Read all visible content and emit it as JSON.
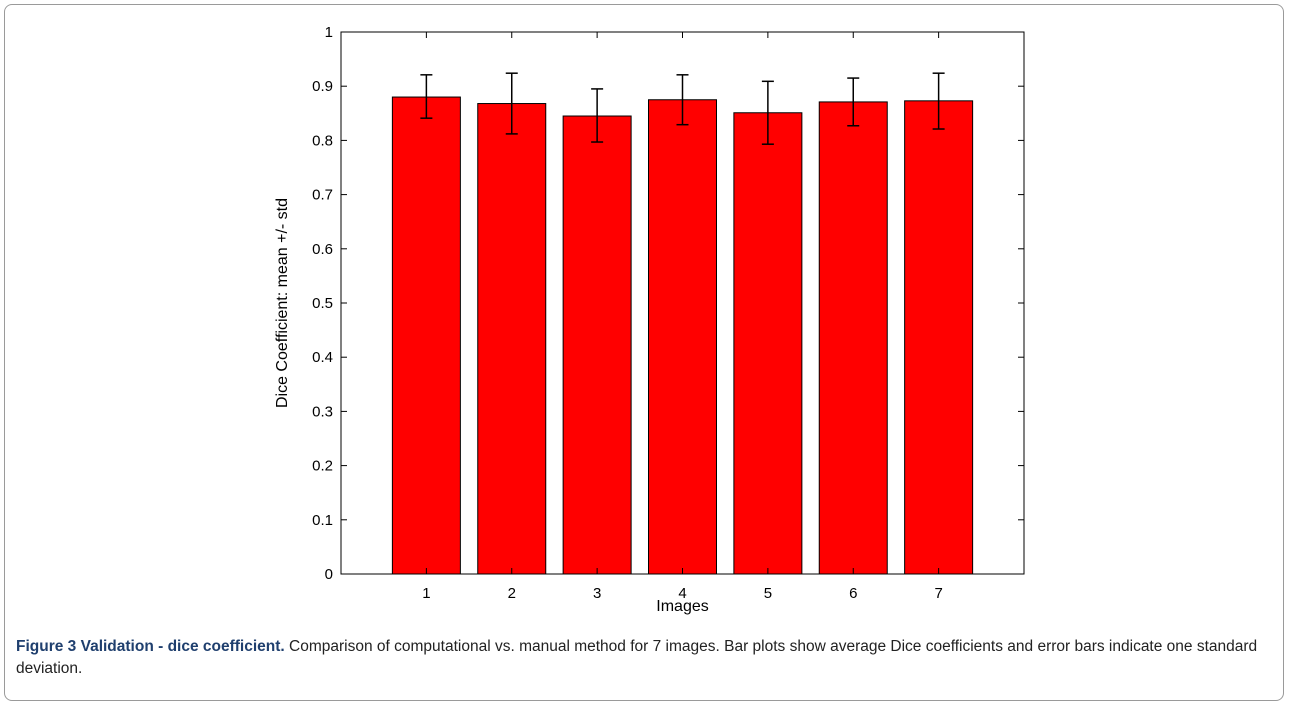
{
  "chart_data": {
    "type": "bar",
    "categories": [
      "1",
      "2",
      "3",
      "4",
      "5",
      "6",
      "7"
    ],
    "values": [
      0.88,
      0.868,
      0.845,
      0.875,
      0.851,
      0.871,
      0.873
    ],
    "error_upper": [
      0.921,
      0.924,
      0.895,
      0.921,
      0.909,
      0.915,
      0.924
    ],
    "error_lower": [
      0.841,
      0.812,
      0.797,
      0.829,
      0.793,
      0.827,
      0.821
    ],
    "xlabel": "Images",
    "ylabel": "Dice Coefficient: mean +/- std",
    "ylim": [
      0,
      1
    ],
    "yticks": [
      "0",
      "0.1",
      "0.2",
      "0.3",
      "0.4",
      "0.5",
      "0.6",
      "0.7",
      "0.8",
      "0.9",
      "1"
    ],
    "bar_color": "#ff0000",
    "grid": false,
    "legend": "none"
  },
  "caption": {
    "label": "Figure 3 Validation - dice coefficient.",
    "text": " Comparison of computational vs. manual method for 7 images. Bar plots show average Dice coefficients and error bars indicate one standard deviation."
  }
}
